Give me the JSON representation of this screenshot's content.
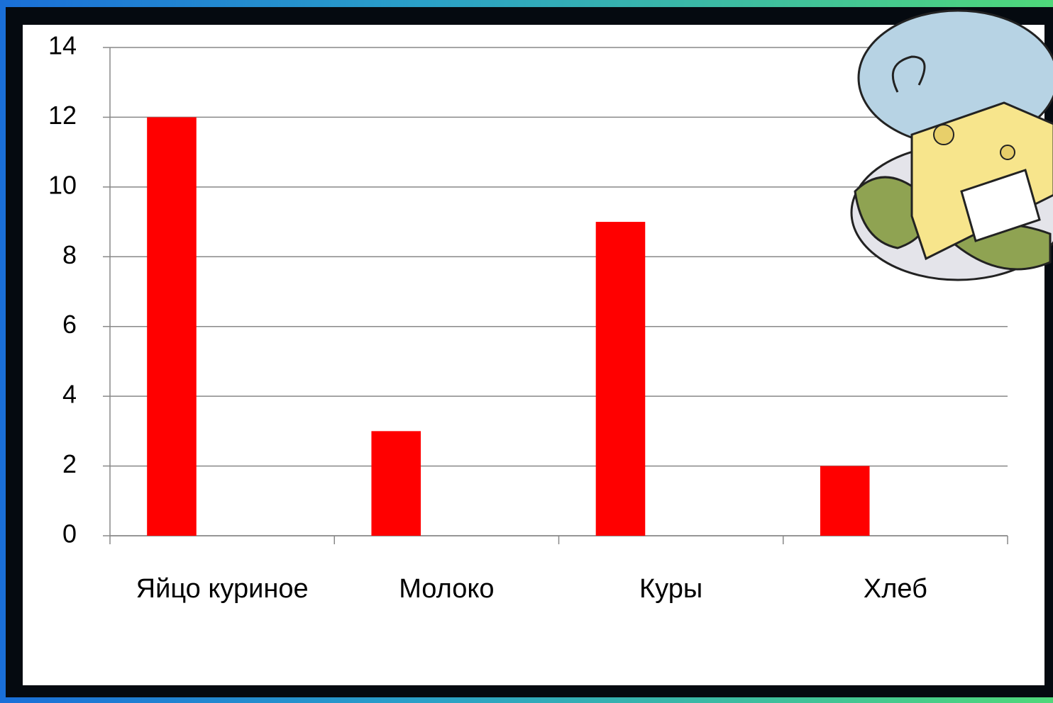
{
  "chart_data": {
    "type": "bar",
    "categories": [
      "Яйцо куриное",
      "Молоко",
      "Куры",
      "Хлеб"
    ],
    "values": [
      12,
      3,
      9,
      2
    ],
    "color": "#ff0000",
    "ylim": [
      0,
      14
    ],
    "yticks": [
      0,
      2,
      4,
      6,
      8,
      10,
      12,
      14
    ],
    "grid": true
  }
}
